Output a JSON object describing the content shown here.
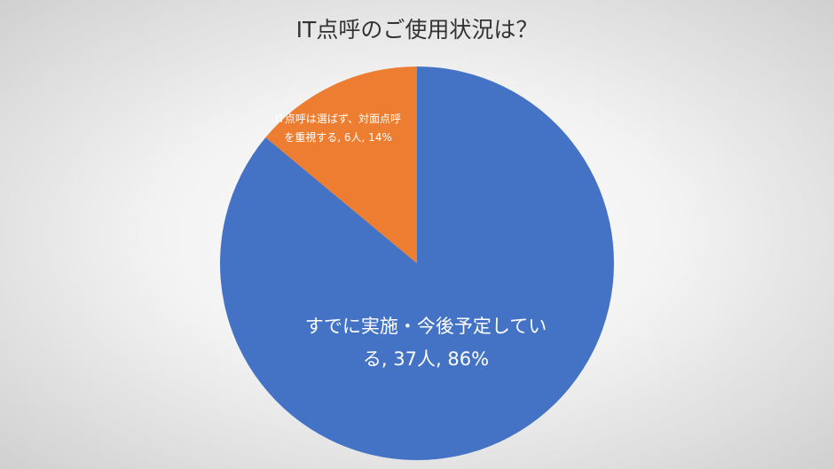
{
  "chart_data": {
    "type": "pie",
    "title": "IT点呼のご使用状況は？",
    "categories": [
      "すでに実施・今後予定している",
      "IT点呼は選ばず、対面点呼を重視する"
    ],
    "values": [
      37,
      6
    ],
    "value_labels": [
      "37人",
      "6人"
    ],
    "percentages": [
      86,
      14
    ],
    "percentage_labels": [
      "86%",
      "14%"
    ],
    "label_separator": ", ",
    "colors": [
      "#4472c4",
      "#ed7d31"
    ],
    "start_angle": 0,
    "direction": "clockwise"
  }
}
